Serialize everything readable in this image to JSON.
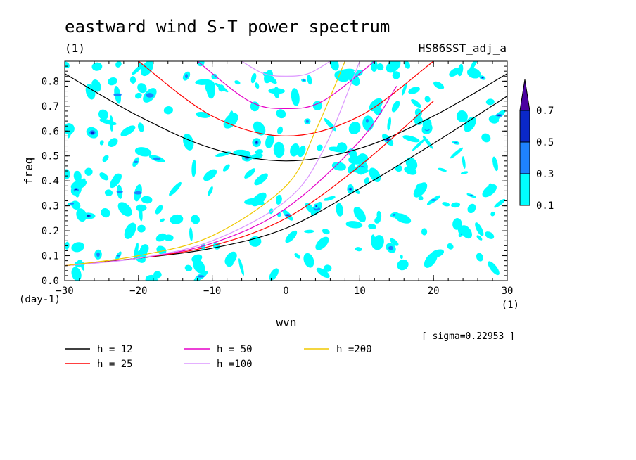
{
  "chart_data": {
    "type": "line",
    "title": "eastward wind S-T power spectrum",
    "subtitle_left": "(1)",
    "subtitle_right": "HS86SST_adj_a",
    "xlabel": "wvn",
    "ylabel": "freq",
    "x_unit": "(1)",
    "y_unit": "(day-1)",
    "xlim": [
      -30,
      30
    ],
    "ylim": [
      0,
      0.88
    ],
    "x_ticks": [
      -30,
      -20,
      -10,
      0,
      10,
      20,
      30
    ],
    "y_ticks": [
      0.0,
      0.1,
      0.2,
      0.3,
      0.4,
      0.5,
      0.6,
      0.7,
      0.8
    ],
    "sigma_text": "[ sigma=0.22953 ]",
    "colorbar": {
      "levels": [
        "0.1",
        "0.3",
        "0.5",
        "0.7"
      ],
      "colors": [
        "#00ffff",
        "#1e82ff",
        "#0a28c8",
        "#4b00a0"
      ]
    },
    "series": [
      {
        "label": "h = 12",
        "h": 12,
        "color": "#000000",
        "branch1": {
          "x": [
            -30,
            -20,
            -10,
            0,
            10,
            20,
            30
          ],
          "y": [
            0.83,
            0.66,
            0.53,
            0.48,
            0.53,
            0.66,
            0.83
          ]
        },
        "branch2": {
          "x": [
            -30,
            -20,
            -10,
            0,
            10,
            20,
            30
          ],
          "y": [
            0.06,
            0.09,
            0.13,
            0.21,
            0.37,
            0.55,
            0.74
          ]
        }
      },
      {
        "label": "h = 25",
        "h": 25,
        "color": "#ff0000",
        "branch1": {
          "x": [
            -20,
            -10,
            0,
            10,
            20
          ],
          "y": [
            0.88,
            0.66,
            0.58,
            0.66,
            0.88
          ]
        },
        "branch2": {
          "x": [
            -30,
            -20,
            -10,
            0,
            10,
            20
          ],
          "y": [
            0.06,
            0.09,
            0.14,
            0.25,
            0.46,
            0.72
          ]
        }
      },
      {
        "label": "h = 50",
        "h": 50,
        "color": "#e600c8",
        "branch1": {
          "x": [
            -12,
            -5,
            0,
            5,
            12
          ],
          "y": [
            0.88,
            0.72,
            0.69,
            0.72,
            0.88
          ]
        },
        "branch2": {
          "x": [
            -30,
            -20,
            -10,
            0,
            10,
            15
          ],
          "y": [
            0.06,
            0.09,
            0.15,
            0.29,
            0.56,
            0.78
          ]
        }
      },
      {
        "label": "h =100",
        "h": 100,
        "color": "#dc96ff",
        "branch1": {
          "x": [
            -6,
            -3,
            0,
            3,
            6
          ],
          "y": [
            0.88,
            0.83,
            0.82,
            0.83,
            0.88
          ]
        },
        "branch2": {
          "x": [
            -30,
            -20,
            -10,
            0,
            5,
            10
          ],
          "y": [
            0.06,
            0.09,
            0.16,
            0.32,
            0.52,
            0.88
          ]
        }
      },
      {
        "label": "h =200",
        "h": 200,
        "color": "#f0c800",
        "branch1": null,
        "branch2": {
          "x": [
            -30,
            -20,
            -10,
            0,
            4,
            8
          ],
          "y": [
            0.06,
            0.1,
            0.18,
            0.38,
            0.6,
            0.88
          ]
        }
      }
    ]
  }
}
